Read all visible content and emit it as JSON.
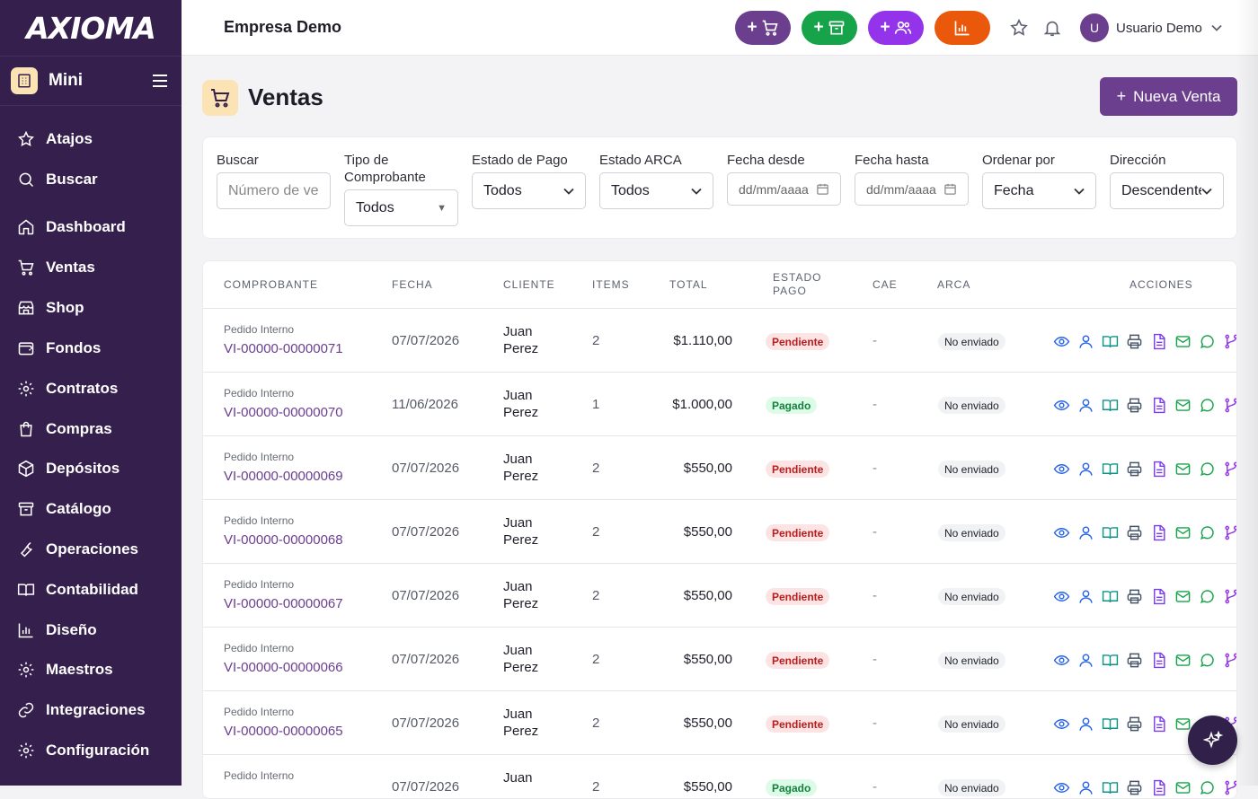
{
  "app": {
    "logo": "AXIOMA",
    "company": "Empresa Demo"
  },
  "sidebar": {
    "plan": "Mini",
    "items": [
      {
        "label": "Atajos",
        "icon": "star-icon"
      },
      {
        "label": "Buscar",
        "icon": "search-icon"
      },
      {
        "label": "Dashboard",
        "icon": "home-icon"
      },
      {
        "label": "Ventas",
        "icon": "cart-icon"
      },
      {
        "label": "Shop",
        "icon": "store-icon"
      },
      {
        "label": "Fondos",
        "icon": "wallet-icon"
      },
      {
        "label": "Contratos",
        "icon": "gear-icon"
      },
      {
        "label": "Compras",
        "icon": "bag-icon"
      },
      {
        "label": "Depósitos",
        "icon": "box-icon"
      },
      {
        "label": "Catálogo",
        "icon": "archive-icon"
      },
      {
        "label": "Operaciones",
        "icon": "wrench-icon"
      },
      {
        "label": "Contabilidad",
        "icon": "book-icon"
      },
      {
        "label": "Diseño",
        "icon": "chart-icon"
      },
      {
        "label": "Maestros",
        "icon": "gear-icon"
      },
      {
        "label": "Integraciones",
        "icon": "link-icon"
      },
      {
        "label": "Configuración",
        "icon": "gear-icon"
      }
    ]
  },
  "topbar": {
    "quick_buttons": [
      {
        "icon": "cart-icon",
        "color": "#6b3e8e"
      },
      {
        "icon": "archive-icon",
        "color": "#16a34a"
      },
      {
        "icon": "users-icon",
        "color": "#9333ea"
      },
      {
        "icon": "chart-icon",
        "color": "#ea580c"
      }
    ],
    "user": {
      "initial": "U",
      "name": "Usuario Demo"
    }
  },
  "page": {
    "title": "Ventas",
    "new_button": "Nueva Venta"
  },
  "filters": {
    "search_label": "Buscar",
    "search_placeholder": "Número de venta",
    "tipo_label": "Tipo de Comprobante",
    "tipo_value": "Todos",
    "pago_label": "Estado de Pago",
    "pago_value": "Todos",
    "arca_label": "Estado ARCA",
    "arca_value": "Todos",
    "desde_label": "Fecha desde",
    "desde_placeholder": "dd/mm/aaaa",
    "hasta_label": "Fecha hasta",
    "hasta_placeholder": "dd/mm/aaaa",
    "orden_label": "Ordenar por",
    "orden_value": "Fecha",
    "dir_label": "Dirección",
    "dir_value": "Descendente"
  },
  "table": {
    "columns": {
      "comprobante": "COMPROBANTE",
      "fecha": "FECHA",
      "cliente": "CLIENTE",
      "items": "ITEMS",
      "total": "TOTAL",
      "estado_pago_1": "ESTADO",
      "estado_pago_2": "PAGO",
      "cae": "CAE",
      "arca": "ARCA",
      "acciones": "ACCIONES"
    },
    "rows": [
      {
        "tipo": "Pedido Interno",
        "numero": "VI-00000-00000071",
        "fecha": "07/07/2026",
        "cliente_1": "Juan",
        "cliente_2": "Perez",
        "items": "2",
        "total": "$1.110,00",
        "estado": "Pendiente",
        "cae": "-",
        "arca": "No enviado"
      },
      {
        "tipo": "Pedido Interno",
        "numero": "VI-00000-00000070",
        "fecha": "11/06/2026",
        "cliente_1": "Juan",
        "cliente_2": "Perez",
        "items": "1",
        "total": "$1.000,00",
        "estado": "Pagado",
        "cae": "-",
        "arca": "No enviado"
      },
      {
        "tipo": "Pedido Interno",
        "numero": "VI-00000-00000069",
        "fecha": "07/07/2026",
        "cliente_1": "Juan",
        "cliente_2": "Perez",
        "items": "2",
        "total": "$550,00",
        "estado": "Pendiente",
        "cae": "-",
        "arca": "No enviado"
      },
      {
        "tipo": "Pedido Interno",
        "numero": "VI-00000-00000068",
        "fecha": "07/07/2026",
        "cliente_1": "Juan",
        "cliente_2": "Perez",
        "items": "2",
        "total": "$550,00",
        "estado": "Pendiente",
        "cae": "-",
        "arca": "No enviado"
      },
      {
        "tipo": "Pedido Interno",
        "numero": "VI-00000-00000067",
        "fecha": "07/07/2026",
        "cliente_1": "Juan",
        "cliente_2": "Perez",
        "items": "2",
        "total": "$550,00",
        "estado": "Pendiente",
        "cae": "-",
        "arca": "No enviado"
      },
      {
        "tipo": "Pedido Interno",
        "numero": "VI-00000-00000066",
        "fecha": "07/07/2026",
        "cliente_1": "Juan",
        "cliente_2": "Perez",
        "items": "2",
        "total": "$550,00",
        "estado": "Pendiente",
        "cae": "-",
        "arca": "No enviado"
      },
      {
        "tipo": "Pedido Interno",
        "numero": "VI-00000-00000065",
        "fecha": "07/07/2026",
        "cliente_1": "Juan",
        "cliente_2": "Perez",
        "items": "2",
        "total": "$550,00",
        "estado": "Pendiente",
        "cae": "-",
        "arca": "No enviado"
      },
      {
        "tipo": "Pedido Interno",
        "numero": "",
        "fecha": "07/07/2026",
        "cliente_1": "Juan",
        "cliente_2": "",
        "items": "2",
        "total": "$550,00",
        "estado": "Pagado",
        "cae": "-",
        "arca": "No enviado"
      }
    ],
    "action_icons": [
      "view-icon",
      "client-icon",
      "book-icon",
      "print-icon",
      "document-icon",
      "email-icon",
      "whatsapp-icon",
      "fork-icon"
    ]
  }
}
